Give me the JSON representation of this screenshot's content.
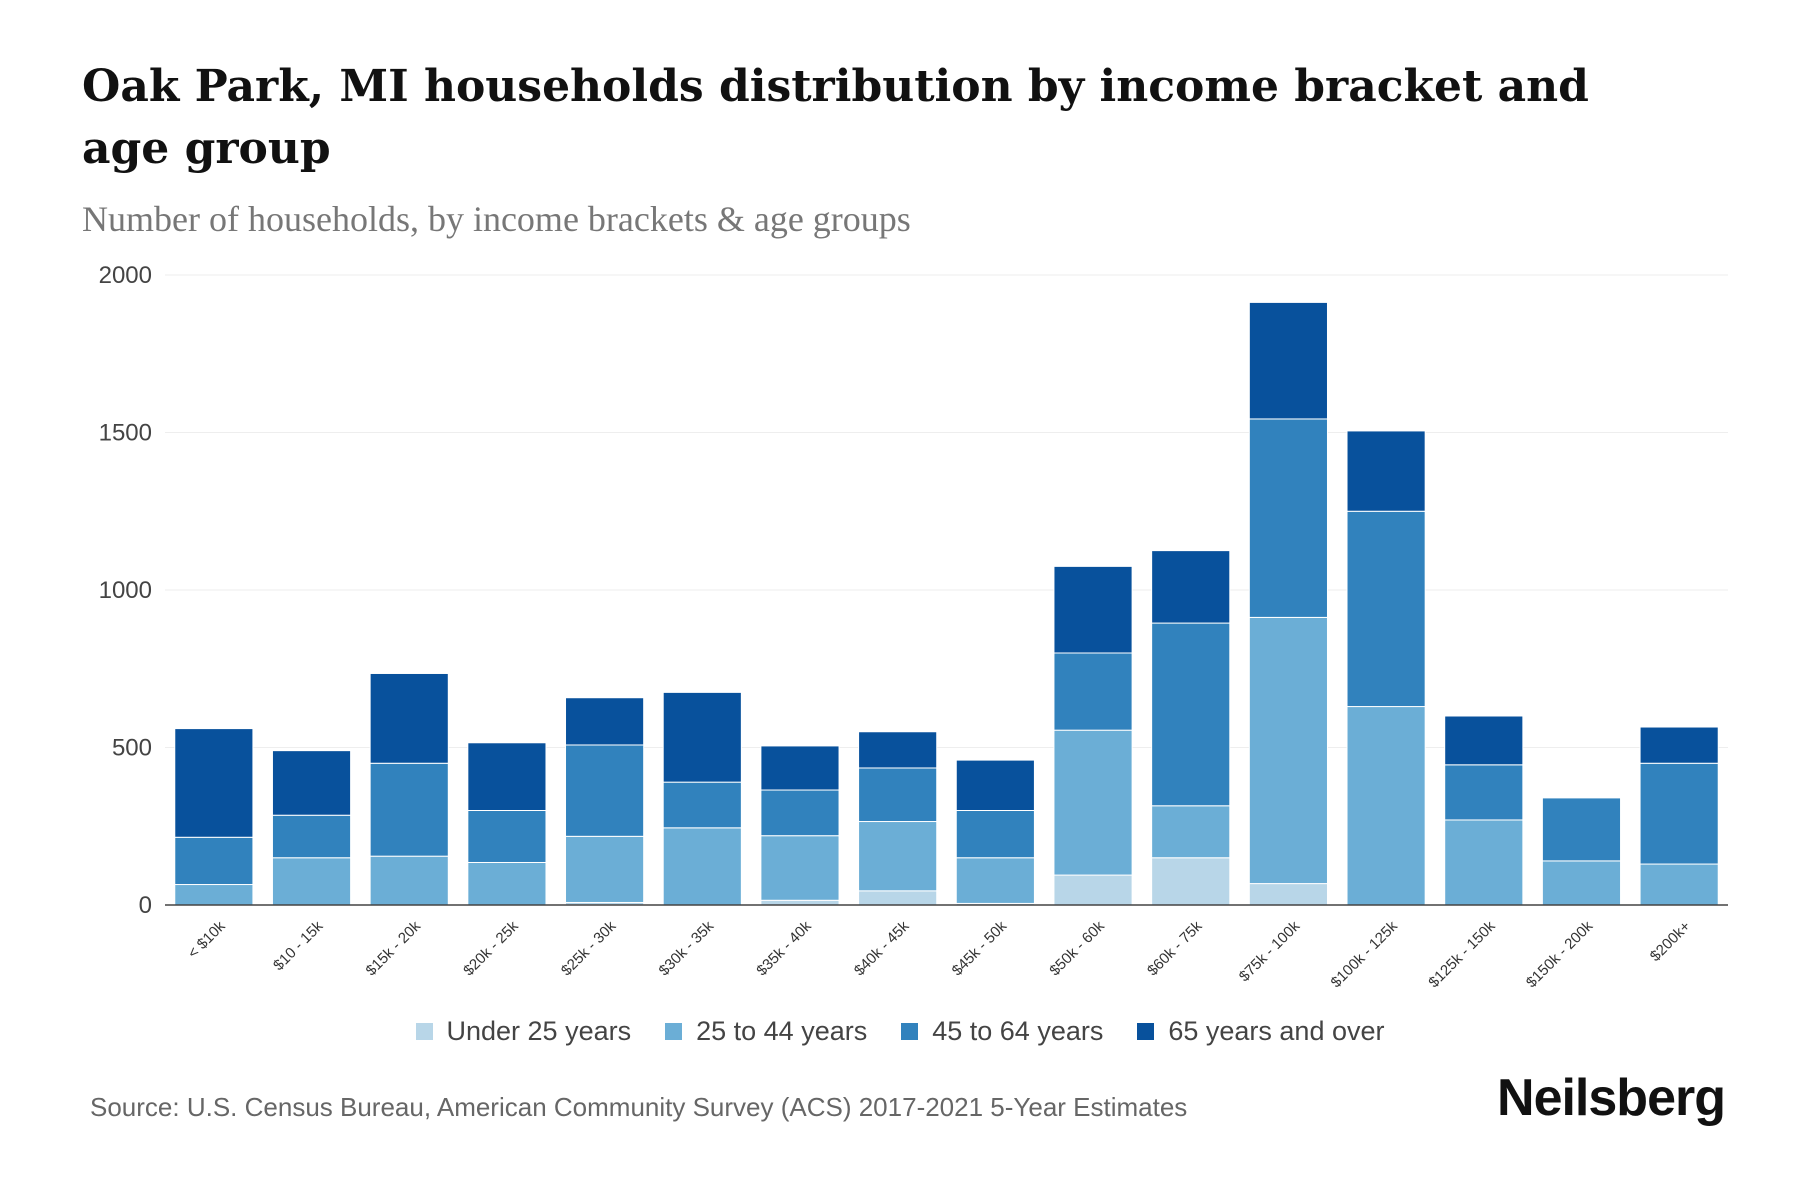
{
  "title": "Oak Park, MI households distribution by income bracket and age group",
  "subtitle": "Number of households, by income brackets & age groups",
  "source": "Source: U.S. Census Bureau, American Community Survey (ACS) 2017-2021 5-Year Estimates",
  "brand": "Neilsberg",
  "chart_data": {
    "type": "bar",
    "stacked": true,
    "categories": [
      "< $10k",
      "$10 - 15k",
      "$15k - 20k",
      "$20k - 25k",
      "$25k - 30k",
      "$30k - 35k",
      "$35k - 40k",
      "$40k - 45k",
      "$45k - 50k",
      "$50k - 60k",
      "$60k - 75k",
      "$75k - 100k",
      "$100k - 125k",
      "$125k - 150k",
      "$150k - 200k",
      "$200k+"
    ],
    "series": [
      {
        "name": "Under 25 years",
        "color": "#b8d6e8",
        "values": [
          0,
          0,
          0,
          0,
          8,
          0,
          15,
          45,
          5,
          95,
          150,
          68,
          0,
          0,
          0,
          0
        ]
      },
      {
        "name": "25 to 44 years",
        "color": "#6baed6",
        "values": [
          65,
          150,
          155,
          135,
          210,
          245,
          205,
          220,
          145,
          460,
          165,
          845,
          630,
          270,
          140,
          130
        ]
      },
      {
        "name": "45 to 64 years",
        "color": "#3182bd",
        "values": [
          150,
          135,
          295,
          165,
          290,
          145,
          145,
          170,
          150,
          245,
          580,
          630,
          620,
          175,
          200,
          320
        ]
      },
      {
        "name": "65 years and over",
        "color": "#08519c",
        "values": [
          345,
          205,
          285,
          215,
          150,
          285,
          140,
          115,
          160,
          275,
          230,
          370,
          255,
          155,
          0,
          115
        ]
      }
    ],
    "yticks": [
      0,
      500,
      1000,
      1500,
      2000
    ],
    "ylim": [
      0,
      2000
    ],
    "grid": true,
    "legend_position": "bottom"
  }
}
